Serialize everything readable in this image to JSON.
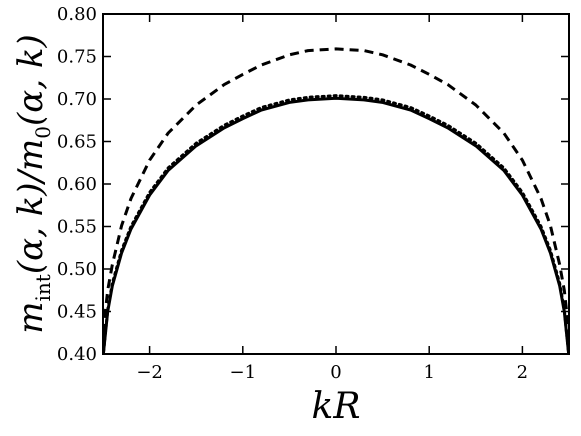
{
  "chart_data": {
    "type": "line",
    "title": "",
    "xlabel": "kR",
    "ylabel_parts": {
      "m": "m",
      "sub": "int",
      "mid": "(α, k)/",
      "m2": "m",
      "sub2": "0",
      "tail": "(α, k)"
    },
    "xlim": [
      -2.5,
      2.5
    ],
    "ylim": [
      0.4,
      0.8
    ],
    "xticks": [
      -2,
      -1,
      0,
      1,
      2
    ],
    "xtick_labels": [
      "−2",
      "−1",
      "0",
      "1",
      "2"
    ],
    "yticks": [
      0.4,
      0.45,
      0.5,
      0.55,
      0.6,
      0.65,
      0.7,
      0.75,
      0.8
    ],
    "ytick_labels": [
      "0.40",
      "0.45",
      "0.50",
      "0.55",
      "0.60",
      "0.65",
      "0.70",
      "0.75",
      "0.80"
    ],
    "grid": false,
    "legend": "none",
    "x": [
      -2.5,
      -2.45,
      -2.4,
      -2.3,
      -2.2,
      -2.0,
      -1.8,
      -1.5,
      -1.2,
      -1.0,
      -0.8,
      -0.5,
      -0.3,
      0.0,
      0.3,
      0.5,
      0.8,
      1.0,
      1.2,
      1.5,
      1.8,
      2.0,
      2.2,
      2.3,
      2.4,
      2.45,
      2.5
    ],
    "series": [
      {
        "style": "dashed",
        "color": "#000000",
        "values": [
          0.425,
          0.475,
          0.505,
          0.551,
          0.583,
          0.628,
          0.66,
          0.693,
          0.717,
          0.729,
          0.74,
          0.752,
          0.757,
          0.759,
          0.757,
          0.752,
          0.74,
          0.729,
          0.717,
          0.693,
          0.66,
          0.628,
          0.583,
          0.551,
          0.505,
          0.475,
          0.425
        ]
      },
      {
        "style": "dotted",
        "color": "#000000",
        "values": [
          0.396,
          0.452,
          0.483,
          0.522,
          0.55,
          0.59,
          0.619,
          0.648,
          0.669,
          0.68,
          0.69,
          0.699,
          0.702,
          0.704,
          0.702,
          0.699,
          0.69,
          0.68,
          0.669,
          0.648,
          0.619,
          0.59,
          0.55,
          0.522,
          0.483,
          0.452,
          0.396
        ]
      },
      {
        "style": "solid",
        "color": "#000000",
        "values": [
          0.396,
          0.45,
          0.48,
          0.519,
          0.547,
          0.587,
          0.616,
          0.645,
          0.666,
          0.677,
          0.687,
          0.696,
          0.699,
          0.701,
          0.699,
          0.696,
          0.687,
          0.677,
          0.666,
          0.645,
          0.616,
          0.587,
          0.547,
          0.519,
          0.48,
          0.45,
          0.396
        ]
      }
    ]
  }
}
